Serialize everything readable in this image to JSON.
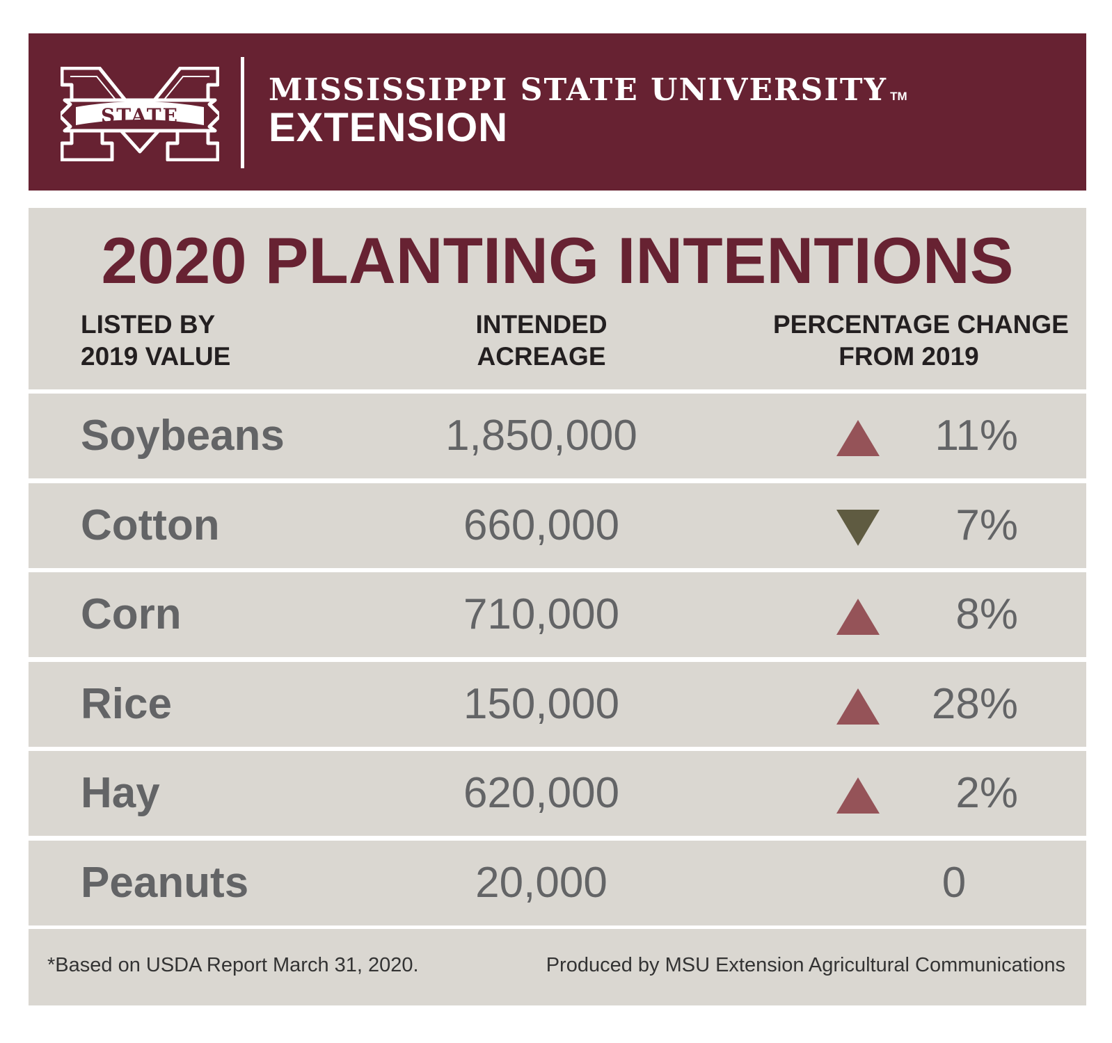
{
  "header": {
    "logo_text": "STATE",
    "university": "MISSISSIPPI STATE UNIVERSITY",
    "trademark": "TM",
    "unit": "EXTENSION",
    "bg_color": "#672232"
  },
  "table": {
    "title": "2020 PLANTING INTENTIONS",
    "columns": [
      [
        "LISTED BY",
        "2019 VALUE"
      ],
      [
        "INTENDED",
        "ACREAGE"
      ],
      [
        "PERCENTAGE CHANGE",
        "FROM 2019"
      ]
    ],
    "rows": [
      {
        "crop": "Soybeans",
        "acreage": "1,850,000",
        "change": "11%",
        "direction": "up"
      },
      {
        "crop": "Cotton",
        "acreage": "660,000",
        "change": "7%",
        "direction": "down"
      },
      {
        "crop": "Corn",
        "acreage": "710,000",
        "change": "8%",
        "direction": "up"
      },
      {
        "crop": "Rice",
        "acreage": "150,000",
        "change": "28%",
        "direction": "up"
      },
      {
        "crop": "Hay",
        "acreage": "620,000",
        "change": "2%",
        "direction": "up"
      },
      {
        "crop": "Peanuts",
        "acreage": "20,000",
        "change": "0",
        "direction": "none"
      }
    ],
    "colors": {
      "up_arrow": "#955358",
      "down_arrow": "#5f5b41",
      "title": "#672232",
      "row_bg": "#dad7d1",
      "value_text": "#636466"
    }
  },
  "chart_data": {
    "type": "table",
    "title": "2020 PLANTING INTENTIONS",
    "columns": [
      "LISTED BY 2019 VALUE",
      "INTENDED ACREAGE",
      "PERCENTAGE CHANGE FROM 2019"
    ],
    "categories": [
      "Soybeans",
      "Cotton",
      "Corn",
      "Rice",
      "Hay",
      "Peanuts"
    ],
    "series": [
      {
        "name": "INTENDED ACREAGE",
        "values": [
          1850000,
          660000,
          710000,
          150000,
          620000,
          20000
        ]
      },
      {
        "name": "PERCENTAGE CHANGE FROM 2019",
        "values": [
          11,
          -7,
          8,
          28,
          2,
          0
        ]
      }
    ]
  },
  "footer": {
    "note": "*Based on USDA Report March 31, 2020.",
    "credit": "Produced by MSU Extension Agricultural Communications"
  }
}
